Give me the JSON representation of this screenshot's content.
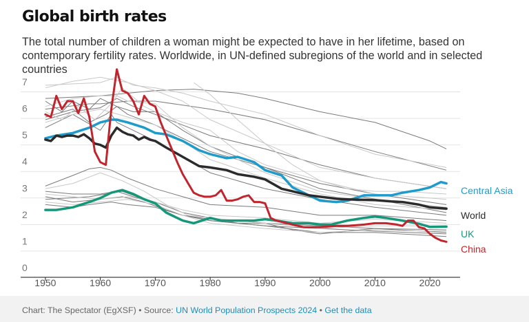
{
  "header": {
    "title": "Global birth rates",
    "subtitle": "The total number of children a woman might be expected to have in her lifetime, based on contemporary fertility rates. Worldwide, in UN-defined subregions of the world and in selected countries"
  },
  "footer": {
    "credit": "Chart: The Spectator (EgXSF)",
    "separator": " • ",
    "source_prefix": "Source: ",
    "source_link": "UN World Population Prospects 2024",
    "data_link": "Get the data"
  },
  "colors": {
    "world": "#2b2b2b",
    "central_asia": "#1e9bcb",
    "uk": "#16977a",
    "china": "#c0242c",
    "subregion_dark": "#7a7a7a",
    "subregion_light": "#c8c8c8",
    "grid": "#e3e3e3"
  },
  "chart_data": {
    "type": "line",
    "title": "Global birth rates",
    "xlim": [
      1950,
      2023
    ],
    "ylim": [
      0,
      7
    ],
    "x_ticks": [
      1950,
      1960,
      1970,
      1980,
      1990,
      2000,
      2010,
      2020
    ],
    "y_ticks": [
      0,
      1,
      2,
      3,
      4,
      5,
      6,
      7
    ],
    "grid": true,
    "legend": "direct labels at right end of lines",
    "series": [
      {
        "name": "Central Asia",
        "highlight": true,
        "color": "#1e9bcb",
        "x": [
          1950,
          1952,
          1955,
          1958,
          1960,
          1962,
          1963,
          1965,
          1968,
          1970,
          1972,
          1975,
          1978,
          1980,
          1983,
          1985,
          1988,
          1990,
          1993,
          1995,
          1998,
          2000,
          2003,
          2005,
          2008,
          2010,
          2013,
          2015,
          2018,
          2020,
          2022,
          2023
        ],
        "y": [
          4.9,
          5.0,
          5.1,
          5.3,
          5.5,
          5.6,
          5.6,
          5.5,
          5.3,
          5.1,
          5.05,
          4.8,
          4.45,
          4.3,
          4.15,
          4.2,
          4.0,
          3.7,
          3.5,
          3.05,
          2.75,
          2.55,
          2.5,
          2.55,
          2.75,
          2.75,
          2.75,
          2.85,
          2.95,
          3.05,
          3.25,
          3.2
        ]
      },
      {
        "name": "World",
        "highlight": true,
        "color": "#2b2b2b",
        "x": [
          1950,
          1951,
          1952,
          1953,
          1954,
          1955,
          1956,
          1957,
          1958,
          1959,
          1960,
          1961,
          1962,
          1963,
          1964,
          1965,
          1966,
          1967,
          1968,
          1969,
          1970,
          1972,
          1975,
          1978,
          1980,
          1983,
          1985,
          1988,
          1990,
          1993,
          1995,
          1998,
          2000,
          2003,
          2005,
          2008,
          2010,
          2013,
          2015,
          2018,
          2020,
          2023
        ],
        "y": [
          4.85,
          4.8,
          5.0,
          4.95,
          5.0,
          5.0,
          4.95,
          5.05,
          4.9,
          4.7,
          4.65,
          4.55,
          5.0,
          5.3,
          5.15,
          5.05,
          5.0,
          4.85,
          4.95,
          4.85,
          4.8,
          4.55,
          4.2,
          3.85,
          3.8,
          3.7,
          3.55,
          3.45,
          3.35,
          3.0,
          2.9,
          2.75,
          2.7,
          2.62,
          2.6,
          2.58,
          2.57,
          2.52,
          2.5,
          2.4,
          2.3,
          2.25
        ]
      },
      {
        "name": "UK",
        "highlight": true,
        "color": "#16977a",
        "x": [
          1950,
          1952,
          1955,
          1958,
          1960,
          1962,
          1964,
          1966,
          1968,
          1970,
          1972,
          1975,
          1977,
          1980,
          1982,
          1985,
          1988,
          1990,
          1992,
          1995,
          1998,
          2000,
          2002,
          2005,
          2008,
          2010,
          2012,
          2015,
          2018,
          2020,
          2023
        ],
        "y": [
          2.2,
          2.2,
          2.3,
          2.5,
          2.65,
          2.85,
          2.95,
          2.8,
          2.6,
          2.45,
          2.1,
          1.8,
          1.7,
          1.9,
          1.8,
          1.8,
          1.8,
          1.85,
          1.8,
          1.7,
          1.7,
          1.65,
          1.65,
          1.8,
          1.9,
          1.95,
          1.9,
          1.8,
          1.68,
          1.56,
          1.57
        ]
      },
      {
        "name": "China",
        "highlight": true,
        "color": "#c0242c",
        "x": [
          1950,
          1951,
          1952,
          1953,
          1954,
          1955,
          1956,
          1957,
          1958,
          1959,
          1960,
          1961,
          1962,
          1963,
          1964,
          1965,
          1966,
          1967,
          1968,
          1969,
          1970,
          1971,
          1972,
          1973,
          1974,
          1975,
          1976,
          1977,
          1978,
          1979,
          1980,
          1981,
          1982,
          1983,
          1984,
          1985,
          1986,
          1987,
          1988,
          1989,
          1990,
          1991,
          1992,
          1993,
          1994,
          1995,
          1996,
          1997,
          1998,
          1999,
          2000,
          2003,
          2005,
          2008,
          2010,
          2012,
          2014,
          2015,
          2016,
          2017,
          2018,
          2019,
          2020,
          2021,
          2022,
          2023
        ],
        "y": [
          5.8,
          5.7,
          6.5,
          6.0,
          6.3,
          6.3,
          5.85,
          6.4,
          5.7,
          4.4,
          4.0,
          3.9,
          6.0,
          7.5,
          6.7,
          6.6,
          6.3,
          5.8,
          6.5,
          6.2,
          6.1,
          5.5,
          5.0,
          4.5,
          4.0,
          3.55,
          3.2,
          2.85,
          2.75,
          2.7,
          2.7,
          2.75,
          2.95,
          2.55,
          2.55,
          2.6,
          2.7,
          2.75,
          2.5,
          2.5,
          2.45,
          1.9,
          1.8,
          1.75,
          1.7,
          1.65,
          1.6,
          1.55,
          1.55,
          1.55,
          1.55,
          1.6,
          1.6,
          1.65,
          1.7,
          1.7,
          1.65,
          1.6,
          1.8,
          1.8,
          1.55,
          1.5,
          1.3,
          1.15,
          1.05,
          1.0
        ]
      }
    ],
    "background_series": [
      {
        "tone": "dark",
        "x": [
          1950,
          1960,
          1970,
          1977,
          1985,
          1990,
          2000,
          2010,
          2020,
          2023
        ],
        "y": [
          6.4,
          6.5,
          6.7,
          6.75,
          6.6,
          6.4,
          5.9,
          5.5,
          4.8,
          4.5
        ]
      },
      {
        "tone": "dark",
        "x": [
          1950,
          1958,
          1960,
          1965,
          1970,
          1980,
          1990,
          2000,
          2010,
          2023
        ],
        "y": [
          6.0,
          6.2,
          6.2,
          6.3,
          6.3,
          6.0,
          5.6,
          5.0,
          4.4,
          3.7
        ]
      },
      {
        "tone": "dark",
        "x": [
          1950,
          1955,
          1960,
          1963,
          1966,
          1970,
          1980,
          1990,
          2000,
          2010,
          2023
        ],
        "y": [
          5.6,
          5.9,
          6.05,
          6.4,
          6.1,
          5.8,
          5.0,
          4.5,
          3.9,
          3.4,
          3.0
        ]
      },
      {
        "tone": "dark",
        "x": [
          1950,
          1955,
          1958,
          1961,
          1963,
          1965,
          1970,
          1980,
          1990,
          2000,
          2010,
          2023
        ],
        "y": [
          5.7,
          6.0,
          5.5,
          5.8,
          6.1,
          5.8,
          5.4,
          4.4,
          3.8,
          3.2,
          2.8,
          2.4
        ]
      },
      {
        "tone": "dark",
        "x": [
          1950,
          1955,
          1960,
          1962,
          1963,
          1965,
          1970,
          1980,
          1990,
          2000,
          2010,
          2023
        ],
        "y": [
          5.3,
          5.8,
          5.2,
          5.8,
          5.5,
          5.3,
          4.8,
          3.6,
          3.0,
          2.6,
          2.3,
          2.0
        ]
      },
      {
        "tone": "dark",
        "x": [
          1950,
          1953,
          1955,
          1958,
          1960,
          1963,
          1966,
          1970,
          1975,
          1980,
          1990,
          2000,
          2023
        ],
        "y": [
          6.3,
          5.9,
          6.3,
          6.0,
          6.4,
          6.1,
          5.9,
          5.9,
          5.2,
          4.6,
          3.8,
          3.0,
          2.1
        ]
      },
      {
        "tone": "dark",
        "x": [
          1950,
          1955,
          1958,
          1960,
          1962,
          1965,
          1970,
          1975,
          1980,
          1990,
          2000,
          2010,
          2023
        ],
        "y": [
          3.1,
          3.5,
          3.75,
          3.8,
          3.7,
          3.4,
          3.0,
          2.7,
          2.4,
          2.3,
          2.0,
          2.0,
          1.8
        ]
      },
      {
        "tone": "dark",
        "x": [
          1950,
          1955,
          1960,
          1963,
          1966,
          1970,
          1975,
          1980,
          1985,
          1990,
          2000,
          2010,
          2023
        ],
        "y": [
          2.9,
          2.8,
          2.8,
          2.9,
          2.7,
          2.5,
          2.1,
          1.9,
          1.7,
          1.7,
          1.6,
          1.5,
          1.35
        ]
      },
      {
        "tone": "dark",
        "x": [
          1950,
          1955,
          1960,
          1964,
          1968,
          1972,
          1975,
          1980,
          1990,
          2000,
          2010,
          2023
        ],
        "y": [
          2.7,
          2.5,
          2.6,
          2.7,
          2.5,
          2.2,
          2.0,
          1.8,
          1.6,
          1.35,
          1.35,
          1.2
        ]
      },
      {
        "tone": "dark",
        "x": [
          1950,
          1958,
          1964,
          1968,
          1972,
          1975,
          1980,
          1985,
          1990,
          1995,
          2000,
          2010,
          2023
        ],
        "y": [
          2.6,
          2.7,
          2.9,
          2.6,
          2.2,
          2.0,
          1.85,
          1.8,
          1.7,
          1.45,
          1.3,
          1.5,
          1.45
        ]
      },
      {
        "tone": "dark",
        "x": [
          1950,
          1955,
          1958,
          1962,
          1965,
          1970,
          1975,
          1980,
          1990,
          2000,
          2010,
          2023
        ],
        "y": [
          2.4,
          2.3,
          2.4,
          2.5,
          2.4,
          2.3,
          2.0,
          1.8,
          1.6,
          1.5,
          1.4,
          1.3
        ]
      },
      {
        "tone": "light",
        "x": [
          1950,
          1955,
          1960,
          1963,
          1966,
          1970,
          1975,
          1980,
          1990,
          2000,
          2010,
          2023
        ],
        "y": [
          6.9,
          6.95,
          7.0,
          7.2,
          6.9,
          6.8,
          6.6,
          6.3,
          5.8,
          5.0,
          4.3,
          3.8
        ]
      },
      {
        "tone": "light",
        "x": [
          1950,
          1955,
          1960,
          1965,
          1970,
          1975,
          1980,
          1990,
          2000,
          2010,
          2023
        ],
        "y": [
          6.8,
          7.05,
          7.2,
          7.0,
          6.7,
          6.3,
          5.6,
          4.7,
          3.8,
          3.4,
          3.0
        ]
      },
      {
        "tone": "light",
        "x": [
          1950,
          1955,
          1960,
          1963,
          1965,
          1970,
          1975,
          1980,
          1990,
          2000,
          2010,
          2023
        ],
        "y": [
          6.1,
          6.4,
          6.5,
          6.5,
          6.3,
          6.2,
          5.3,
          4.6,
          3.6,
          2.9,
          2.6,
          2.3
        ]
      },
      {
        "tone": "light",
        "x": [
          1950,
          1953,
          1956,
          1959,
          1962,
          1964,
          1968,
          1970,
          1975,
          1980,
          1985,
          1990,
          2000,
          2010,
          2023
        ],
        "y": [
          5.9,
          5.6,
          6.1,
          5.6,
          6.2,
          6.8,
          6.1,
          5.9,
          5.5,
          5.2,
          4.4,
          3.9,
          3.3,
          2.8,
          2.6
        ]
      },
      {
        "tone": "light",
        "x": [
          1950,
          1955,
          1960,
          1965,
          1970,
          1975,
          1980,
          1990,
          2000,
          2010,
          2023
        ],
        "y": [
          5.5,
          5.8,
          6.0,
          5.7,
          5.4,
          4.8,
          4.1,
          3.4,
          2.8,
          2.4,
          2.2
        ]
      },
      {
        "tone": "light",
        "x": [
          1977,
          1980,
          1985,
          1990,
          1995,
          2000,
          2005,
          2010,
          2015,
          2023
        ],
        "y": [
          7.0,
          6.55,
          5.6,
          4.7,
          3.9,
          3.3,
          3.0,
          2.9,
          2.9,
          2.8
        ]
      },
      {
        "tone": "light",
        "x": [
          1950,
          1955,
          1960,
          1964,
          1968,
          1972,
          1976,
          1980,
          1985,
          1990,
          2000,
          2010,
          2023
        ],
        "y": [
          3.0,
          3.2,
          3.6,
          3.3,
          2.9,
          2.4,
          2.0,
          1.9,
          1.8,
          1.7,
          1.5,
          1.6,
          1.6
        ]
      },
      {
        "tone": "light",
        "x": [
          1950,
          1955,
          1960,
          1965,
          1970,
          1975,
          1980,
          1985,
          1990,
          2000,
          2010,
          2020,
          2023
        ],
        "y": [
          2.5,
          2.4,
          2.5,
          2.6,
          2.4,
          2.0,
          1.7,
          1.6,
          1.5,
          1.35,
          1.45,
          1.4,
          1.4
        ]
      },
      {
        "tone": "light",
        "x": [
          1950,
          1955,
          1960,
          1965,
          1970,
          1975,
          1980,
          1990,
          2000,
          2010,
          2023
        ],
        "y": [
          2.8,
          2.7,
          2.6,
          2.7,
          2.5,
          2.2,
          2.0,
          1.9,
          1.7,
          1.85,
          1.7
        ]
      }
    ]
  }
}
